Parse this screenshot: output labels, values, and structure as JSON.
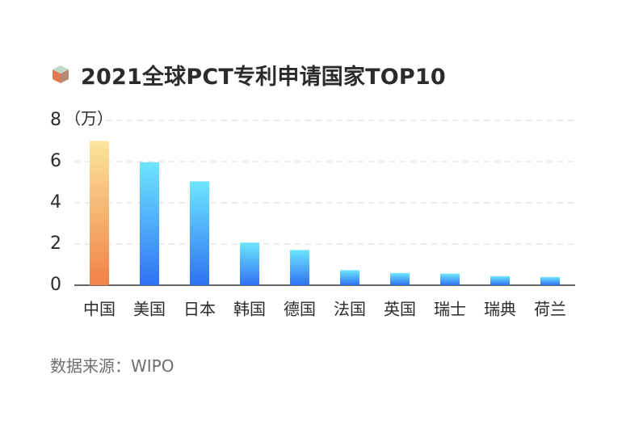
{
  "title": "2021全球PCT专利申请国家TOP10",
  "source": "数据来源：WIPO",
  "icons": {
    "title_icon": "cube-icon"
  },
  "colors": {
    "highlight_top": "#FBE59C",
    "highlight_bottom": "#F08248",
    "normal_top": "#6EE6FF",
    "normal_bottom": "#2F72F1",
    "grid": "#D9D9D9",
    "axis": "#333333",
    "text": "#2b2b2b",
    "muted": "#6f6f6f"
  },
  "chart_data": {
    "type": "bar",
    "title": "2021全球PCT专利申请国家TOP10",
    "xlabel": "",
    "ylabel": "",
    "unit_label": "（万）",
    "categories": [
      "中国",
      "美国",
      "日本",
      "韩国",
      "德国",
      "法国",
      "英国",
      "瑞士",
      "瑞典",
      "荷兰"
    ],
    "series": [
      {
        "values": [
          7.0,
          5.97,
          5.04,
          2.07,
          1.71,
          0.73,
          0.59,
          0.56,
          0.44,
          0.4
        ]
      }
    ],
    "ylim": [
      0,
      8
    ],
    "yticks": [
      0,
      2,
      4,
      6,
      8
    ],
    "grid": true,
    "legend": "none",
    "highlight_index": 0
  }
}
